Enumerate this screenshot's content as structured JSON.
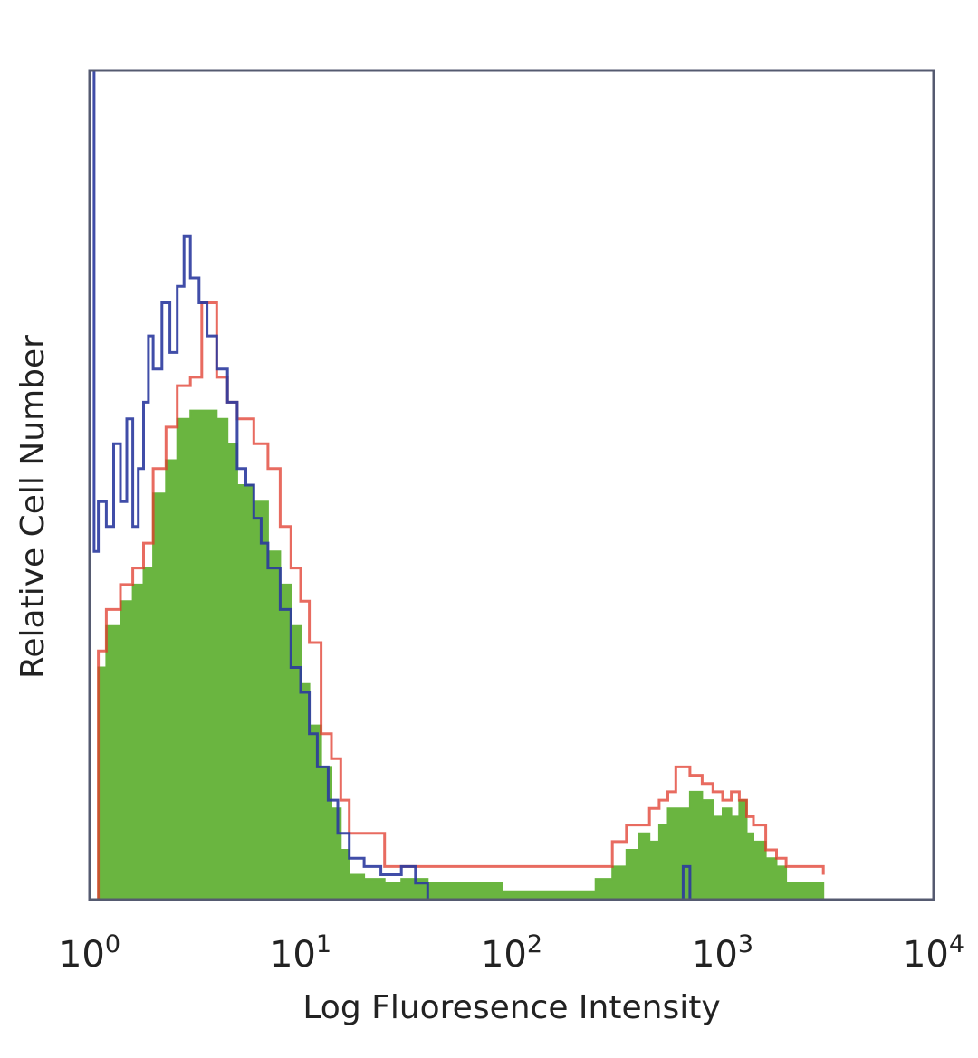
{
  "chart_data": {
    "type": "area",
    "title": "",
    "xlabel": "Log Fluoresence Intensity",
    "ylabel": "Relative Cell Number",
    "xscale": "log",
    "xlim": [
      1,
      10000
    ],
    "ylim": [
      0,
      100
    ],
    "grid": false,
    "legend": "none",
    "x_ticks": [
      {
        "base": "10",
        "exp": "0"
      },
      {
        "base": "10",
        "exp": "1"
      },
      {
        "base": "10",
        "exp": "2"
      },
      {
        "base": "10",
        "exp": "3"
      },
      {
        "base": "10",
        "exp": "4"
      }
    ],
    "series": [
      {
        "color": "#6ab540",
        "fill": true,
        "x": [
          1.0,
          1.1,
          1.2,
          1.4,
          1.6,
          1.8,
          2.0,
          2.3,
          2.6,
          3.0,
          3.4,
          4.0,
          4.5,
          5.0,
          6.0,
          7.0,
          8.0,
          9.0,
          10.0,
          11.0,
          12.5,
          14.0,
          15.5,
          17.0,
          20.0,
          25.0,
          30.0,
          40.0,
          90.0,
          100.0,
          250.0,
          300.0,
          350.0,
          400.0,
          450.0,
          500.0,
          550.0,
          600.0,
          700.0,
          800.0,
          900.0,
          1000.0,
          1100.0,
          1200.0,
          1300.0,
          1400.0,
          1600.0,
          1800.0,
          2000.0,
          3000.0
        ],
        "y": [
          0,
          28,
          33,
          36,
          38,
          40,
          49,
          53,
          58,
          59,
          59,
          58,
          55,
          50,
          48,
          42,
          38,
          33,
          26,
          21,
          16,
          11,
          6,
          3,
          2.5,
          2,
          2.5,
          2,
          1,
          1,
          2.5,
          4,
          6,
          8,
          7,
          9,
          11,
          11,
          13,
          12,
          10,
          11,
          10,
          12,
          8,
          7,
          5,
          4,
          2,
          0
        ]
      },
      {
        "color": "#e0392b",
        "fill": false,
        "x": [
          1.0,
          1.1,
          1.2,
          1.4,
          1.6,
          1.8,
          2.0,
          2.3,
          2.6,
          3.0,
          3.4,
          4.0,
          4.5,
          5.0,
          6.0,
          7.0,
          8.0,
          9.0,
          10.0,
          11.0,
          12.5,
          14.0,
          15.5,
          17.0,
          20.0,
          25.0,
          30.0,
          40.0,
          90.0,
          100.0,
          250.0,
          300.0,
          350.0,
          400.0,
          450.0,
          500.0,
          550.0,
          600.0,
          700.0,
          800.0,
          900.0,
          1000.0,
          1100.0,
          1200.0,
          1300.0,
          1400.0,
          1600.0,
          1800.0,
          2000.0,
          3000.0
        ],
        "y": [
          0,
          30,
          35,
          38,
          40,
          43,
          52,
          57,
          62,
          63,
          72,
          63,
          60,
          58,
          55,
          52,
          45,
          40,
          36,
          31,
          20,
          17,
          12,
          8,
          8,
          4,
          4,
          4,
          4,
          4,
          4,
          7,
          9,
          9,
          11,
          12,
          13,
          16,
          15,
          14,
          13,
          12,
          13,
          12,
          10,
          9,
          6,
          5,
          4,
          3
        ]
      },
      {
        "color": "#2b3a9e",
        "fill": false,
        "x": [
          1.0,
          1.05,
          1.1,
          1.2,
          1.3,
          1.4,
          1.5,
          1.6,
          1.7,
          1.8,
          1.9,
          2.0,
          2.2,
          2.4,
          2.6,
          2.8,
          3.0,
          3.3,
          3.6,
          4.0,
          4.5,
          5.0,
          5.5,
          6.0,
          6.5,
          7.0,
          8.0,
          9.0,
          10.0,
          11.0,
          12.0,
          13.5,
          15.0,
          17.0,
          20.0,
          24.0,
          30.0,
          35.0,
          40.0,
          600.0,
          650.0,
          700.0,
          750.0,
          10000.0
        ],
        "y": [
          100,
          42,
          48,
          45,
          55,
          48,
          58,
          45,
          52,
          60,
          68,
          64,
          72,
          66,
          74,
          80,
          75,
          72,
          68,
          64,
          60,
          52,
          50,
          46,
          43,
          40,
          35,
          28,
          25,
          20,
          16,
          12,
          8,
          5,
          4,
          3,
          4,
          2,
          0,
          0,
          4,
          0,
          0,
          0
        ]
      }
    ]
  }
}
